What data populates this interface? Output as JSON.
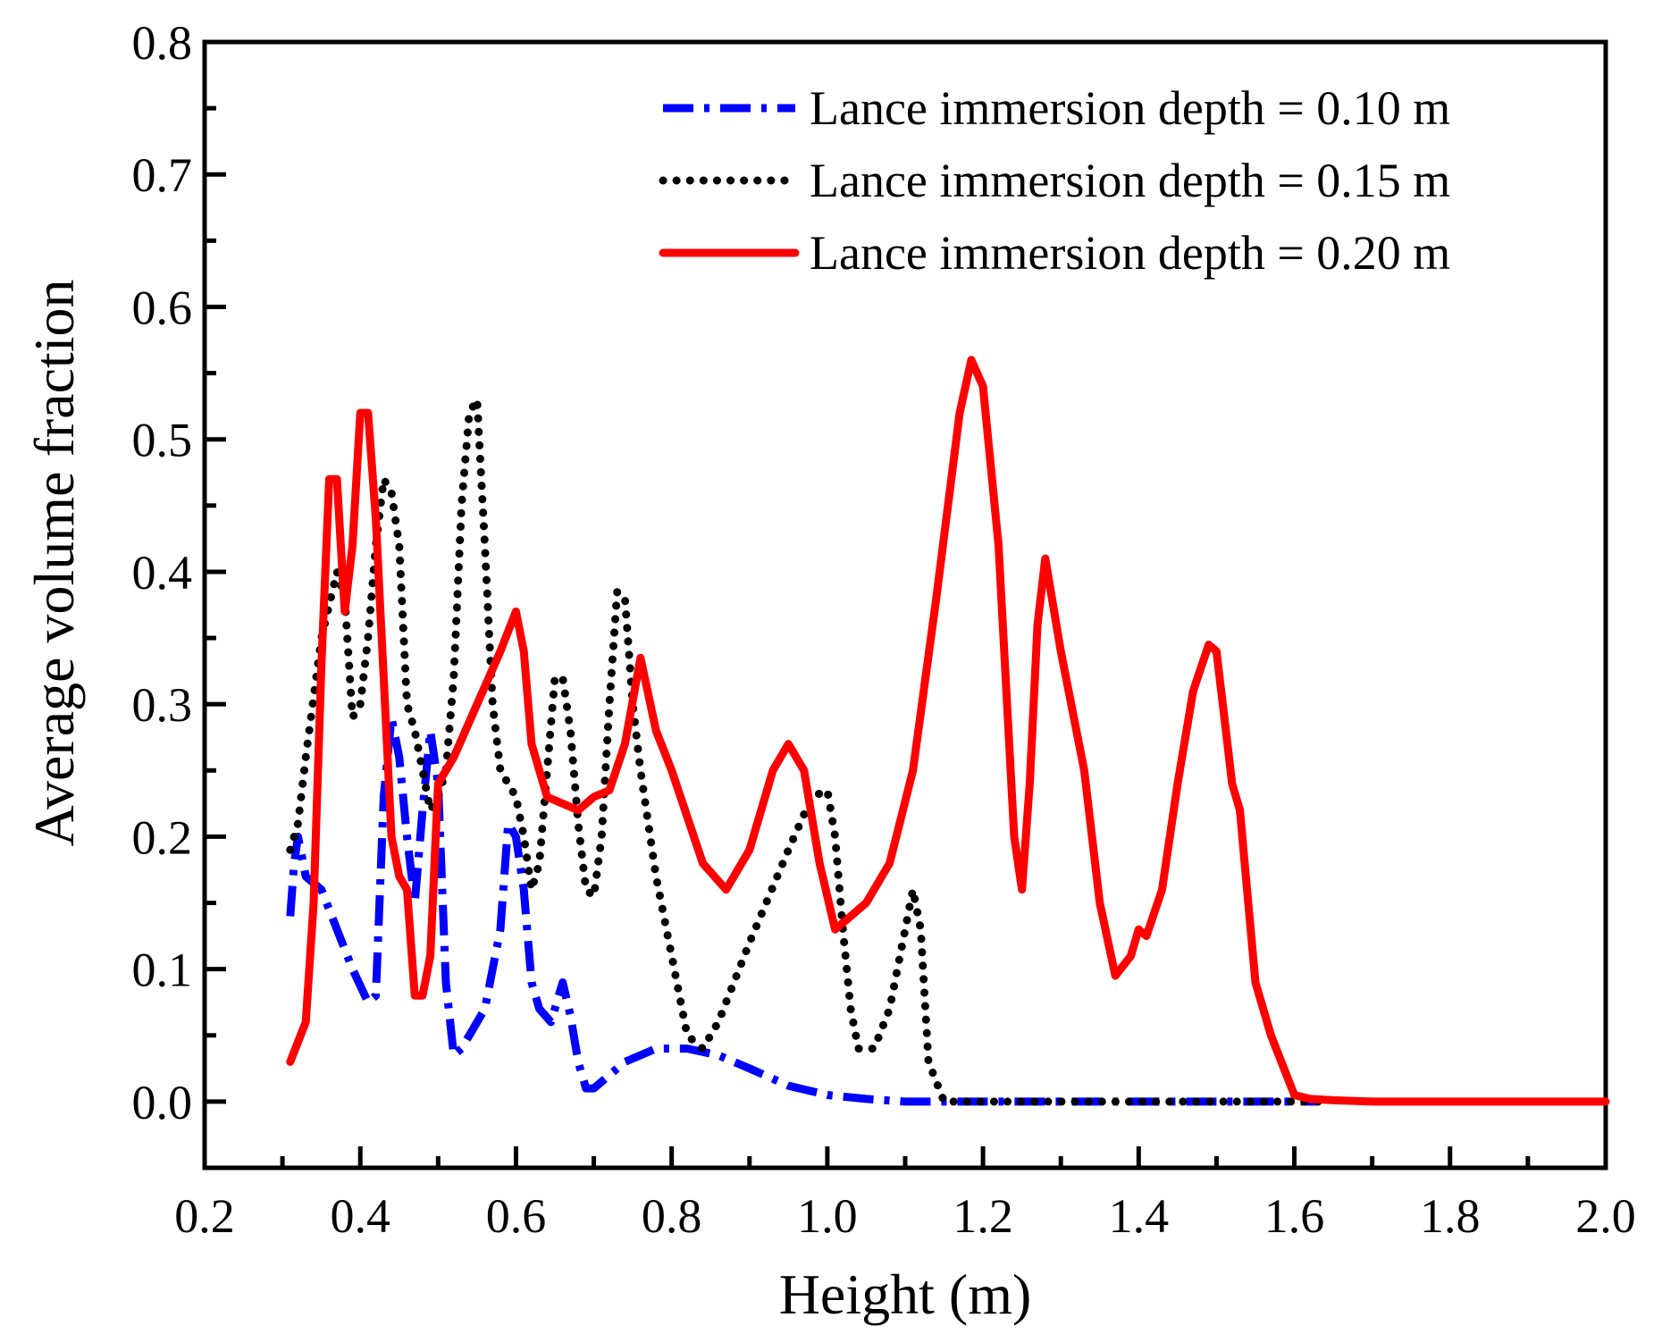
{
  "chart_data": {
    "type": "line",
    "title": "",
    "xlabel": "Height (m)",
    "ylabel": "Average volume fraction",
    "xlim": [
      0.2,
      2.0
    ],
    "ylim": [
      -0.05,
      0.8
    ],
    "xticks": [
      "0.2",
      "0.4",
      "0.6",
      "0.8",
      "1.0",
      "1.2",
      "1.4",
      "1.6",
      "1.8",
      "2.0"
    ],
    "yticks": [
      "0.0",
      "0.1",
      "0.2",
      "0.3",
      "0.4",
      "0.5",
      "0.6",
      "0.7",
      "0.8"
    ],
    "legend_position": "top-right",
    "grid": false,
    "series": [
      {
        "name": "Lance immersion depth = 0.10 m",
        "color": "#0000ff",
        "style": "dash-dot",
        "x": [
          0.31,
          0.315,
          0.32,
          0.33,
          0.35,
          0.37,
          0.39,
          0.41,
          0.42,
          0.43,
          0.44,
          0.45,
          0.46,
          0.47,
          0.48,
          0.49,
          0.5,
          0.51,
          0.52,
          0.53,
          0.54,
          0.56,
          0.58,
          0.59,
          0.6,
          0.61,
          0.62,
          0.63,
          0.645,
          0.66,
          0.67,
          0.68,
          0.69,
          0.7,
          0.74,
          0.78,
          0.82,
          0.86,
          0.9,
          0.95,
          1.0,
          1.05,
          1.1,
          1.12,
          1.15,
          1.2,
          1.3,
          1.4,
          1.5,
          1.6,
          1.63
        ],
        "y": [
          0.14,
          0.18,
          0.2,
          0.17,
          0.16,
          0.13,
          0.1,
          0.075,
          0.08,
          0.23,
          0.29,
          0.26,
          0.2,
          0.15,
          0.22,
          0.28,
          0.24,
          0.09,
          0.035,
          0.04,
          0.05,
          0.07,
          0.13,
          0.21,
          0.2,
          0.16,
          0.09,
          0.07,
          0.06,
          0.09,
          0.065,
          0.03,
          0.01,
          0.01,
          0.03,
          0.04,
          0.04,
          0.035,
          0.025,
          0.012,
          0.005,
          0.002,
          0.0,
          0.0,
          0.0,
          0.0,
          0.0,
          0.0,
          0.0,
          0.0,
          0.0
        ]
      },
      {
        "name": "Lance immersion depth = 0.15 m",
        "color": "#000000",
        "style": "dotted",
        "x": [
          0.31,
          0.32,
          0.33,
          0.35,
          0.37,
          0.38,
          0.39,
          0.4,
          0.41,
          0.42,
          0.43,
          0.44,
          0.45,
          0.46,
          0.47,
          0.48,
          0.49,
          0.5,
          0.51,
          0.52,
          0.53,
          0.54,
          0.55,
          0.56,
          0.57,
          0.58,
          0.59,
          0.6,
          0.61,
          0.62,
          0.63,
          0.64,
          0.65,
          0.66,
          0.67,
          0.68,
          0.69,
          0.7,
          0.71,
          0.72,
          0.73,
          0.74,
          0.75,
          0.76,
          0.78,
          0.8,
          0.82,
          0.84,
          0.86,
          0.9,
          0.95,
          0.98,
          1.0,
          1.01,
          1.02,
          1.03,
          1.04,
          1.06,
          1.08,
          1.1,
          1.11,
          1.12,
          1.13,
          1.15,
          1.2,
          1.3,
          1.4,
          1.5,
          1.6,
          1.64
        ],
        "y": [
          0.19,
          0.21,
          0.26,
          0.35,
          0.4,
          0.38,
          0.29,
          0.3,
          0.35,
          0.42,
          0.47,
          0.46,
          0.42,
          0.3,
          0.28,
          0.25,
          0.22,
          0.23,
          0.25,
          0.32,
          0.45,
          0.52,
          0.53,
          0.42,
          0.3,
          0.25,
          0.24,
          0.23,
          0.2,
          0.16,
          0.18,
          0.25,
          0.32,
          0.32,
          0.28,
          0.21,
          0.16,
          0.155,
          0.2,
          0.3,
          0.385,
          0.38,
          0.3,
          0.25,
          0.17,
          0.11,
          0.05,
          0.04,
          0.06,
          0.12,
          0.19,
          0.23,
          0.235,
          0.2,
          0.13,
          0.07,
          0.04,
          0.04,
          0.07,
          0.13,
          0.16,
          0.13,
          0.03,
          0.0,
          0.0,
          0.0,
          0.0,
          0.0,
          0.0,
          0.0
        ]
      },
      {
        "name": "Lance immersion depth = 0.20 m",
        "color": "#ff0000",
        "style": "solid",
        "x": [
          0.31,
          0.32,
          0.33,
          0.34,
          0.35,
          0.36,
          0.37,
          0.375,
          0.38,
          0.39,
          0.4,
          0.41,
          0.42,
          0.43,
          0.44,
          0.45,
          0.46,
          0.47,
          0.48,
          0.49,
          0.5,
          0.52,
          0.55,
          0.58,
          0.6,
          0.61,
          0.62,
          0.64,
          0.66,
          0.68,
          0.7,
          0.72,
          0.74,
          0.76,
          0.78,
          0.8,
          0.84,
          0.87,
          0.9,
          0.93,
          0.95,
          0.97,
          0.99,
          1.01,
          1.03,
          1.05,
          1.08,
          1.11,
          1.14,
          1.17,
          1.185,
          1.2,
          1.22,
          1.24,
          1.25,
          1.26,
          1.27,
          1.28,
          1.3,
          1.33,
          1.35,
          1.37,
          1.39,
          1.4,
          1.41,
          1.43,
          1.45,
          1.47,
          1.49,
          1.5,
          1.51,
          1.52,
          1.53,
          1.55,
          1.57,
          1.59,
          1.6,
          1.62,
          1.65,
          1.7,
          1.8,
          1.9,
          2.0
        ],
        "y": [
          0.03,
          0.045,
          0.06,
          0.15,
          0.33,
          0.47,
          0.47,
          0.42,
          0.37,
          0.42,
          0.52,
          0.52,
          0.44,
          0.32,
          0.2,
          0.17,
          0.16,
          0.08,
          0.08,
          0.11,
          0.24,
          0.26,
          0.3,
          0.34,
          0.37,
          0.34,
          0.27,
          0.23,
          0.225,
          0.22,
          0.23,
          0.235,
          0.27,
          0.335,
          0.28,
          0.25,
          0.18,
          0.16,
          0.19,
          0.25,
          0.27,
          0.25,
          0.18,
          0.13,
          0.14,
          0.15,
          0.18,
          0.25,
          0.38,
          0.52,
          0.56,
          0.54,
          0.42,
          0.2,
          0.16,
          0.24,
          0.36,
          0.41,
          0.34,
          0.25,
          0.15,
          0.095,
          0.11,
          0.13,
          0.125,
          0.16,
          0.24,
          0.31,
          0.345,
          0.34,
          0.29,
          0.24,
          0.22,
          0.09,
          0.05,
          0.02,
          0.005,
          0.002,
          0.001,
          0.0,
          0.0,
          0.0,
          0.0
        ]
      }
    ]
  }
}
